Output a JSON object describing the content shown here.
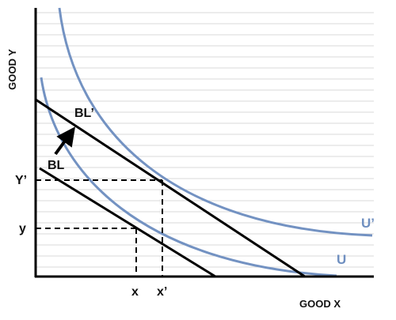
{
  "diagram": {
    "y_axis_title": "GOOD Y",
    "x_axis_title": "GOOD X",
    "labels": {
      "budget_line": "BL",
      "budget_line_new": "BL’",
      "indifference": "U",
      "indifference_new": "U’",
      "x_tick": "x",
      "x_tick_new": "x’",
      "y_tick": "y",
      "y_tick_new": "Y’"
    },
    "colors": {
      "curve": "#7392c2",
      "curve_label": "#6f8fc0",
      "line": "#000000",
      "grid": "#d9d9d9",
      "axis": "#000000"
    },
    "icons": {
      "shift_arrow": "arrow-up-right-icon"
    }
  }
}
